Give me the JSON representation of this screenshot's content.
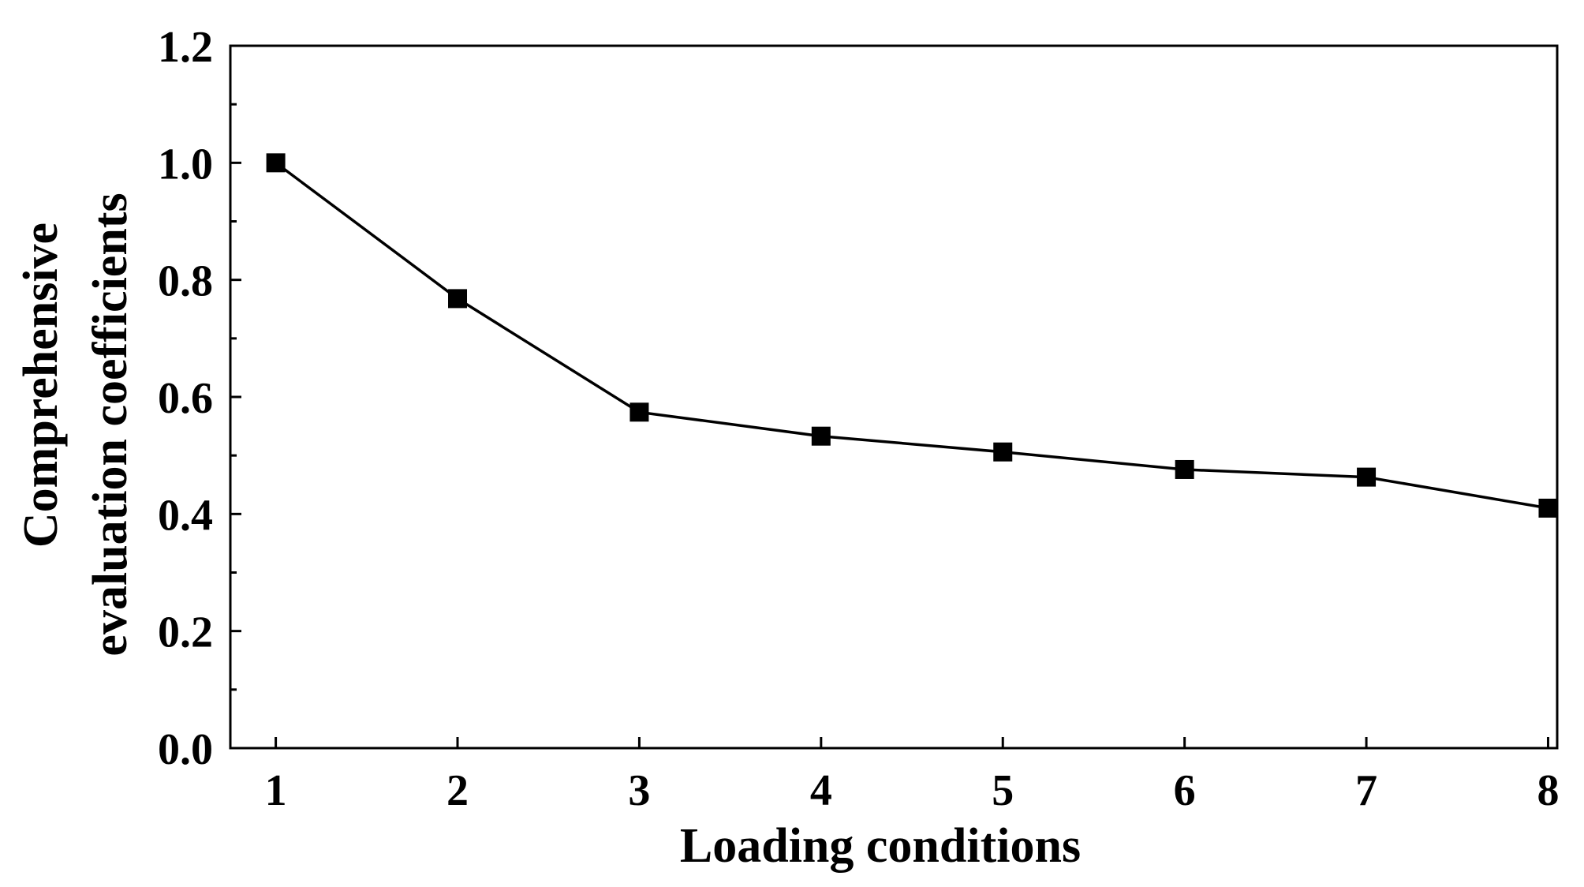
{
  "chart_data": {
    "type": "line",
    "xlabel": "Loading conditions",
    "ylabel_lines": [
      "Comprehensive",
      "evaluation coefficients"
    ],
    "x": [
      1,
      2,
      3,
      4,
      5,
      6,
      7,
      8
    ],
    "x_tick_labels": [
      "1",
      "2",
      "3",
      "4",
      "5",
      "6",
      "7",
      "8"
    ],
    "y_tick_labels": [
      "0.0",
      "0.2",
      "0.4",
      "0.6",
      "0.8",
      "1.0",
      "1.2"
    ],
    "y_ticks": [
      0.0,
      0.2,
      0.4,
      0.6,
      0.8,
      1.0,
      1.2
    ],
    "ylim": [
      0.0,
      1.2
    ],
    "xlim": [
      0.75,
      8.05
    ],
    "grid": false,
    "series": [
      {
        "values": [
          1.0,
          0.768,
          0.574,
          0.533,
          0.506,
          0.476,
          0.463,
          0.41
        ],
        "marker": "filled-square",
        "color": "#000000"
      }
    ]
  }
}
